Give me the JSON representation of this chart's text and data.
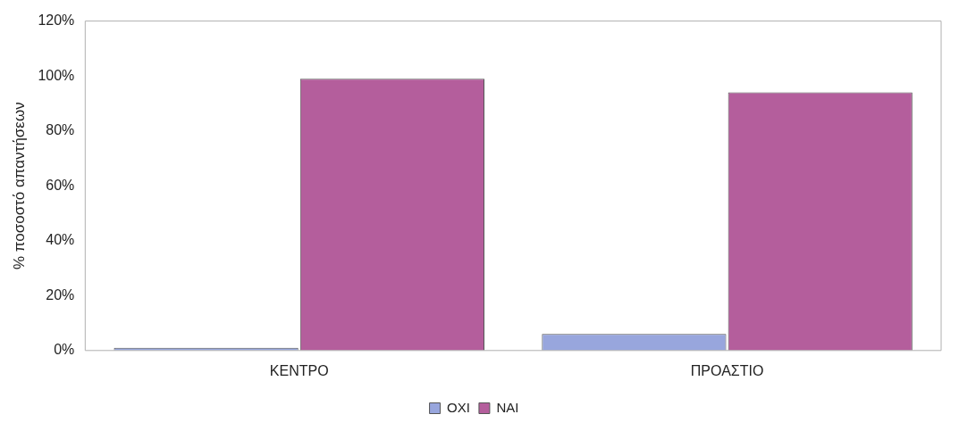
{
  "chart_data": {
    "type": "bar",
    "ylabel": "% ποσοστό απαντήσεων",
    "categories": [
      "ΚΕΝΤΡΟ",
      "ΠΡΟΑΣΤΙΟ"
    ],
    "series": [
      {
        "name": "ΟΧΙ",
        "color": "#98a6dd",
        "values": [
          1,
          6
        ]
      },
      {
        "name": "ΝΑΙ",
        "color": "#b45e9c",
        "values": [
          99,
          94
        ]
      }
    ],
    "ylim": [
      0,
      120
    ],
    "yticks": [
      {
        "value": 0,
        "label": "0%"
      },
      {
        "value": 20,
        "label": "20%"
      },
      {
        "value": 40,
        "label": "40%"
      },
      {
        "value": 60,
        "label": "60%"
      },
      {
        "value": 80,
        "label": "80%"
      },
      {
        "value": 100,
        "label": "100%"
      },
      {
        "value": 120,
        "label": "120%"
      }
    ],
    "grid": false,
    "legend": "bottom"
  }
}
